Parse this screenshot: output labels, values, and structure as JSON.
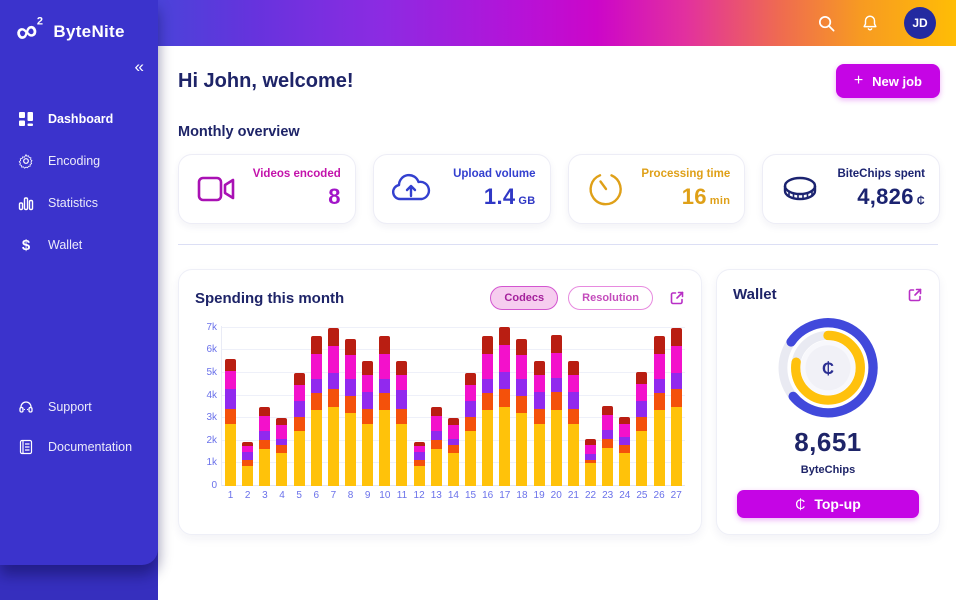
{
  "brand": {
    "name": "ByteNite",
    "logo_sup": "2"
  },
  "topbar": {
    "avatar_initials": "JD"
  },
  "sidebar": {
    "collapse_glyph": "«",
    "items": [
      {
        "label": "Dashboard"
      },
      {
        "label": "Encoding"
      },
      {
        "label": "Statistics"
      },
      {
        "label": "Wallet"
      }
    ],
    "footer_items": [
      {
        "label": "Support"
      },
      {
        "label": "Documentation"
      }
    ]
  },
  "header": {
    "greeting": "Hi John, welcome!",
    "new_job_label": "New job"
  },
  "overview": {
    "title": "Monthly overview",
    "cards": [
      {
        "label": "Videos encoded",
        "value": "8",
        "unit": "",
        "icon": "video-camera",
        "color": "#a215c8"
      },
      {
        "label": "Upload volume",
        "value": "1.4",
        "unit": "GB",
        "icon": "cloud-upload",
        "color": "#3038c5"
      },
      {
        "label": "Processing time",
        "value": "16",
        "unit": "min",
        "icon": "timer",
        "color": "#dfa018"
      },
      {
        "label": "BiteChips spent",
        "value": "4,826",
        "unit": "₵",
        "icon": "coin",
        "color": "#1b2370"
      }
    ]
  },
  "spending": {
    "title": "Spending this month",
    "toggles": [
      {
        "label": "Codecs",
        "selected": true
      },
      {
        "label": "Resolution",
        "selected": false
      }
    ]
  },
  "chart_data": {
    "type": "bar",
    "stacked": true,
    "title": "Spending this month",
    "categories": [
      "1",
      "2",
      "3",
      "4",
      "5",
      "6",
      "7",
      "8",
      "9",
      "10",
      "11",
      "12",
      "13",
      "14",
      "15",
      "16",
      "17",
      "18",
      "19",
      "20",
      "21",
      "22",
      "23",
      "24",
      "25",
      "26",
      "27"
    ],
    "series": [
      {
        "name": "gold",
        "color": "#ffc20a",
        "values": [
          2750,
          900,
          1650,
          1450,
          2450,
          3350,
          3500,
          3250,
          2750,
          3350,
          2750,
          900,
          1650,
          1450,
          2450,
          3350,
          3500,
          3250,
          2750,
          3350,
          2750,
          1000,
          1700,
          1450,
          2450,
          3350,
          3500
        ]
      },
      {
        "name": "orange",
        "color": "#f4510b",
        "values": [
          650,
          250,
          400,
          350,
          600,
          750,
          800,
          750,
          650,
          750,
          650,
          250,
          400,
          350,
          600,
          750,
          800,
          750,
          650,
          800,
          650,
          150,
          400,
          350,
          600,
          750,
          800
        ]
      },
      {
        "name": "violet",
        "color": "#9129ee",
        "values": [
          900,
          350,
          400,
          300,
          700,
          650,
          700,
          750,
          750,
          650,
          850,
          350,
          400,
          300,
          700,
          650,
          750,
          750,
          750,
          650,
          750,
          250,
          400,
          350,
          700,
          650,
          700
        ]
      },
      {
        "name": "magenta",
        "color": "#f311cb",
        "values": [
          800,
          250,
          650,
          600,
          700,
          1100,
          1200,
          1050,
          750,
          1100,
          650,
          250,
          650,
          600,
          700,
          1100,
          1200,
          1050,
          750,
          1100,
          750,
          400,
          650,
          600,
          750,
          1100,
          1200
        ]
      },
      {
        "name": "dark-red",
        "color": "#b91e12",
        "values": [
          500,
          200,
          400,
          300,
          550,
          800,
          800,
          700,
          650,
          800,
          650,
          200,
          400,
          300,
          550,
          800,
          800,
          700,
          650,
          800,
          650,
          300,
          400,
          300,
          550,
          800,
          800
        ]
      }
    ],
    "ylabel_ticks": [
      "0",
      "1k",
      "2k",
      "3k",
      "4k",
      "5k",
      "6k",
      "7k"
    ],
    "ylim": [
      0,
      7000
    ],
    "grid": true,
    "legend": "none"
  },
  "wallet": {
    "title": "Wallet",
    "balance": "8,651",
    "currency_label": "ByteChips",
    "currency_symbol": "₵",
    "topup_label": "Top-up",
    "ring_outer_color": "#4149db",
    "ring_inner_color": "#ffc10d"
  }
}
